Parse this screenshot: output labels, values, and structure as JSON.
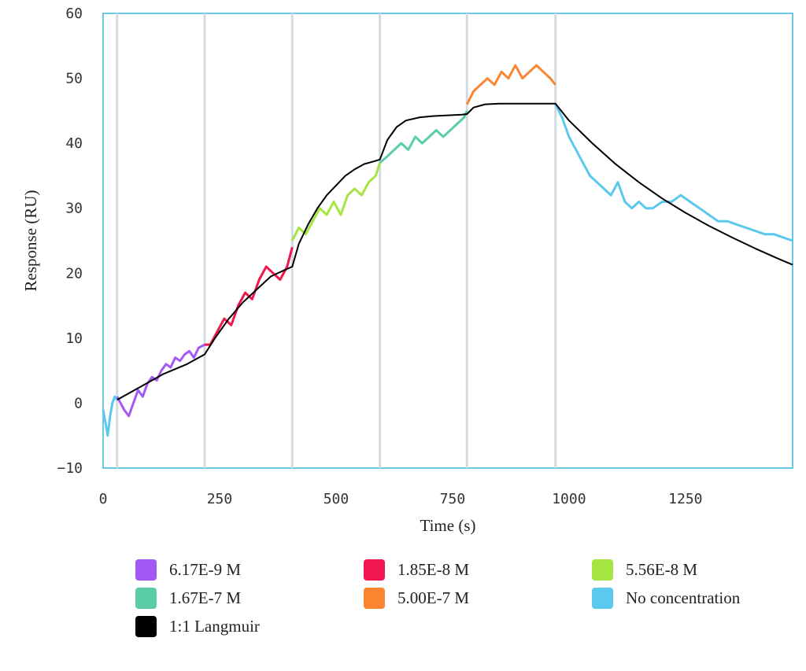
{
  "chart_data": {
    "type": "line",
    "xlabel": "Time (s)",
    "ylabel": "Response (RU)",
    "xlim": [
      0,
      1480
    ],
    "ylim": [
      -10,
      60
    ],
    "x_ticks": [
      0,
      250,
      500,
      750,
      1000,
      1250
    ],
    "y_ticks": [
      -10,
      0,
      10,
      20,
      30,
      40,
      50,
      60
    ],
    "x_tick_labels": [
      "0",
      "250",
      "500",
      "750",
      "1000",
      "1250"
    ],
    "y_tick_labels": [
      "−10",
      "0",
      "10",
      "20",
      "30",
      "40",
      "50",
      "60"
    ],
    "injection_markers": [
      30,
      218,
      406,
      594,
      781,
      971
    ],
    "series": [
      {
        "name": "No concentration",
        "color": "#5bc8ed",
        "x": [
          0,
          5,
          10,
          15,
          20,
          25,
          30
        ],
        "y": [
          -1,
          -3,
          -5,
          -2,
          0,
          1,
          0.5
        ]
      },
      {
        "name": "6.17E-9 M",
        "color": "#a259f5",
        "x": [
          30,
          45,
          55,
          65,
          75,
          85,
          95,
          105,
          115,
          125,
          135,
          145,
          155,
          165,
          175,
          185,
          195,
          205,
          218
        ],
        "y": [
          1,
          -1,
          -2,
          0,
          2,
          1,
          3,
          4,
          3.5,
          5,
          6,
          5.5,
          7,
          6.5,
          7.5,
          8,
          7,
          8.5,
          9
        ]
      },
      {
        "name": "1.85E-8 M",
        "color": "#f0174f",
        "x": [
          218,
          230,
          245,
          260,
          275,
          290,
          305,
          320,
          335,
          350,
          365,
          380,
          395,
          406
        ],
        "y": [
          9,
          9,
          11,
          13,
          12,
          15,
          17,
          16,
          19,
          21,
          20,
          19,
          21,
          24
        ]
      },
      {
        "name": "5.56E-8 M",
        "color": "#a5e542",
        "x": [
          406,
          420,
          435,
          450,
          465,
          480,
          495,
          510,
          525,
          540,
          555,
          570,
          585,
          594
        ],
        "y": [
          25,
          27,
          26,
          28,
          30,
          29,
          31,
          29,
          32,
          33,
          32,
          34,
          35,
          37
        ]
      },
      {
        "name": "1.67E-7 M",
        "color": "#5acda8",
        "x": [
          594,
          610,
          625,
          640,
          655,
          670,
          685,
          700,
          715,
          730,
          745,
          760,
          775,
          781
        ],
        "y": [
          37,
          38,
          39,
          40,
          39,
          41,
          40,
          41,
          42,
          41,
          42,
          43,
          44,
          45
        ]
      },
      {
        "name": "5.00E-7 M",
        "color": "#fb8531",
        "x": [
          781,
          795,
          810,
          825,
          840,
          855,
          870,
          885,
          900,
          915,
          930,
          945,
          960,
          971
        ],
        "y": [
          46,
          48,
          49,
          50,
          49,
          51,
          50,
          52,
          50,
          51,
          52,
          51,
          50,
          49
        ]
      },
      {
        "name": "No concentration",
        "color": "#5bc8ed",
        "x": [
          971,
          985,
          1000,
          1015,
          1030,
          1045,
          1060,
          1075,
          1090,
          1105,
          1120,
          1135,
          1150,
          1165,
          1180,
          1200,
          1220,
          1240,
          1260,
          1280,
          1300,
          1320,
          1340,
          1360,
          1380,
          1400,
          1420,
          1440,
          1460,
          1480
        ],
        "y": [
          46,
          44,
          41,
          39,
          37,
          35,
          34,
          33,
          32,
          34,
          31,
          30,
          31,
          30,
          30,
          31,
          31,
          32,
          31,
          30,
          29,
          28,
          28,
          27.5,
          27,
          26.5,
          26,
          26,
          25.5,
          25
        ]
      },
      {
        "name": "1:1 Langmuir",
        "color": "#000000",
        "x": [
          30,
          80,
          130,
          180,
          218,
          240,
          270,
          300,
          330,
          360,
          390,
          406,
          420,
          440,
          460,
          480,
          500,
          520,
          540,
          560,
          580,
          594,
          610,
          630,
          650,
          680,
          710,
          740,
          770,
          781,
          795,
          820,
          850,
          900,
          971,
          1000,
          1050,
          1100,
          1150,
          1200,
          1250,
          1300,
          1350,
          1400,
          1450,
          1480
        ],
        "y": [
          0.5,
          2.5,
          4.5,
          6,
          7.5,
          10,
          13,
          15.5,
          17.5,
          19.5,
          20.5,
          21,
          24.5,
          27.5,
          30,
          32,
          33.5,
          35,
          36,
          36.8,
          37.2,
          37.5,
          40.5,
          42.5,
          43.5,
          44,
          44.2,
          44.3,
          44.4,
          44.5,
          45.5,
          46,
          46.1,
          46.1,
          46.1,
          43.5,
          40,
          36.8,
          34,
          31.5,
          29.3,
          27.3,
          25.5,
          23.8,
          22.2,
          21.3
        ]
      }
    ],
    "legend": [
      {
        "label": "6.17E-9 M",
        "color": "#a259f5"
      },
      {
        "label": "1.85E-8 M",
        "color": "#f0174f"
      },
      {
        "label": "5.56E-8 M",
        "color": "#a5e542"
      },
      {
        "label": "1.67E-7 M",
        "color": "#5acda8"
      },
      {
        "label": "5.00E-7 M",
        "color": "#fb8531"
      },
      {
        "label": "No concentration",
        "color": "#5bc8ed"
      },
      {
        "label": "1:1 Langmuir",
        "color": "#000000"
      }
    ]
  }
}
